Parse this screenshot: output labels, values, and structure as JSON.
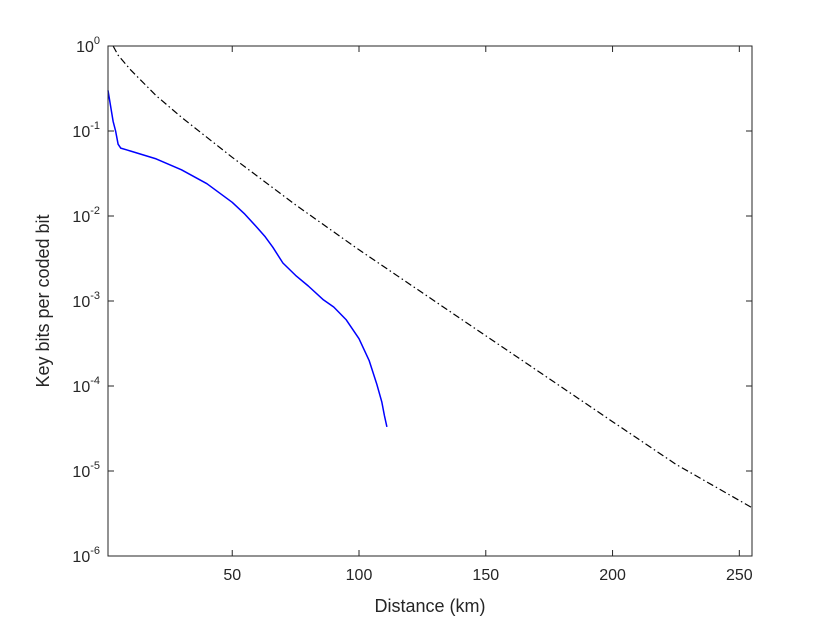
{
  "chart_data": {
    "type": "line",
    "title": "",
    "xlabel": "Distance (km)",
    "ylabel": "Key bits per coded bit",
    "xlim": [
      1,
      255
    ],
    "ylim": [
      1e-06,
      1
    ],
    "yscale": "log",
    "grid": false,
    "x_ticks": [
      {
        "value": 50,
        "label": "50"
      },
      {
        "value": 100,
        "label": "100"
      },
      {
        "value": 150,
        "label": "150"
      },
      {
        "value": 200,
        "label": "200"
      },
      {
        "value": 250,
        "label": "250"
      }
    ],
    "y_ticks": [
      {
        "value": 1e-06,
        "base": "10",
        "exp": "-6"
      },
      {
        "value": 1e-05,
        "base": "10",
        "exp": "-5"
      },
      {
        "value": 0.0001,
        "base": "10",
        "exp": "-4"
      },
      {
        "value": 0.001,
        "base": "10",
        "exp": "-3"
      },
      {
        "value": 0.01,
        "base": "10",
        "exp": "-2"
      },
      {
        "value": 0.1,
        "base": "10",
        "exp": "-1"
      },
      {
        "value": 1,
        "base": "10",
        "exp": "0"
      }
    ],
    "series": [
      {
        "color": "#0000ff",
        "style": "solid",
        "x": [
          1,
          3,
          4,
          5,
          6,
          10,
          20,
          30,
          40,
          50,
          55,
          60,
          63,
          66,
          70,
          75,
          80,
          86,
          90,
          95,
          100,
          104,
          107,
          109,
          110,
          111
        ],
        "y": [
          0.3,
          0.13,
          0.1,
          0.07,
          0.063,
          0.058,
          0.047,
          0.035,
          0.024,
          0.0145,
          0.0105,
          0.0072,
          0.0057,
          0.0043,
          0.0028,
          0.002,
          0.0015,
          0.00103,
          0.00085,
          0.0006,
          0.00036,
          0.0002,
          0.000105,
          6.5e-05,
          4.5e-05,
          3.3e-05
        ]
      },
      {
        "color": "#000000",
        "style": "dash-dot",
        "x": [
          3,
          5,
          10,
          20,
          30,
          50,
          75,
          100,
          125,
          150,
          175,
          200,
          225,
          255
        ],
        "y": [
          1.0,
          0.78,
          0.52,
          0.26,
          0.145,
          0.049,
          0.0135,
          0.004,
          0.00125,
          0.00039,
          0.000122,
          3.8e-05,
          1.2e-05,
          3.7e-06
        ]
      }
    ]
  }
}
